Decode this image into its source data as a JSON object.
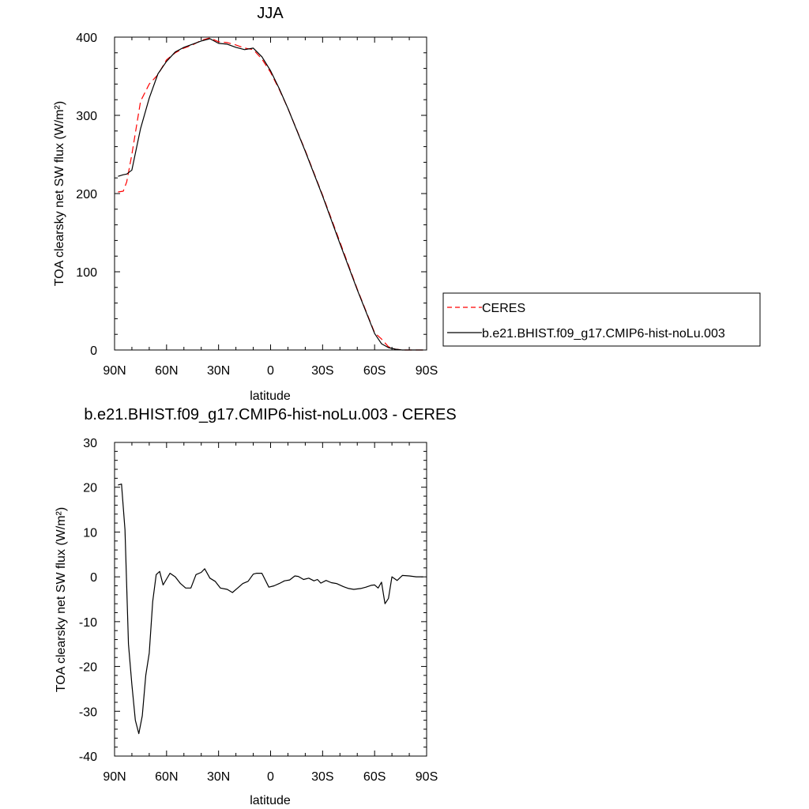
{
  "chart_data": [
    {
      "type": "line",
      "title": "JJA",
      "xlabel": "latitude",
      "ylabel": "TOA clearsky net SW flux (W/m²)",
      "x_tick_labels": [
        "90N",
        "60N",
        "30N",
        "0",
        "30S",
        "60S",
        "90S"
      ],
      "y_tick_labels": [
        "0",
        "100",
        "200",
        "300",
        "400"
      ],
      "xlim": [
        90,
        -90
      ],
      "ylim": [
        0,
        400
      ],
      "legend": {
        "placement": "right",
        "entries": [
          "CERES",
          "b.e21.BHIST.f09_g17.CMIP6-hist-noLu.003"
        ]
      },
      "series": [
        {
          "name": "CERES",
          "color": "#ff0000",
          "style": "dashed",
          "x": [
            88,
            85,
            83,
            80,
            75,
            70,
            65,
            60,
            55,
            50,
            45,
            40,
            35,
            30,
            25,
            20,
            15,
            10,
            5,
            0,
            -5,
            -10,
            -20,
            -30,
            -40,
            -50,
            -60,
            -64,
            -68,
            -72,
            -76,
            -80,
            -85,
            -88
          ],
          "y": [
            202,
            203,
            215,
            250,
            318,
            340,
            352,
            371,
            380,
            386,
            390,
            396,
            399,
            394,
            393,
            390,
            386,
            384,
            372,
            355,
            333,
            309,
            255,
            198,
            138,
            78,
            22,
            14,
            4,
            1,
            0,
            0,
            0,
            0
          ]
        },
        {
          "name": "b.e21.BHIST.f09_g17.CMIP6-hist-noLu.003",
          "color": "#000000",
          "style": "solid",
          "x": [
            88,
            85,
            83,
            80,
            75,
            70,
            65,
            60,
            55,
            50,
            45,
            40,
            35,
            30,
            25,
            20,
            15,
            10,
            5,
            0,
            -5,
            -10,
            -20,
            -30,
            -40,
            -50,
            -60,
            -64,
            -68,
            -72,
            -76,
            -80,
            -85,
            -88
          ],
          "y": [
            222,
            224,
            225,
            230,
            283,
            322,
            353,
            369,
            381,
            387,
            391,
            395,
            398,
            392,
            391,
            387,
            384,
            386,
            375,
            357,
            334,
            309,
            254,
            197,
            136,
            77,
            21,
            8,
            3,
            1,
            0,
            0,
            0,
            0
          ]
        }
      ]
    },
    {
      "type": "line",
      "title": "b.e21.BHIST.f09_g17.CMIP6-hist-noLu.003 - CERES",
      "xlabel": "latitude",
      "ylabel": "TOA clearsky net SW flux (W/m²)",
      "x_tick_labels": [
        "90N",
        "60N",
        "30N",
        "0",
        "30S",
        "60S",
        "90S"
      ],
      "y_tick_labels": [
        "-40",
        "-30",
        "-20",
        "-10",
        "0",
        "10",
        "20",
        "30"
      ],
      "xlim": [
        90,
        -90
      ],
      "ylim": [
        -40,
        30
      ],
      "series": [
        {
          "color": "#000000",
          "style": "solid",
          "x": [
            88,
            86,
            84,
            82,
            80,
            78,
            76,
            74,
            72,
            70,
            68,
            66,
            64,
            62,
            60,
            58,
            55,
            52,
            49,
            46,
            43,
            40,
            38,
            35,
            32,
            29,
            25,
            22,
            19,
            16,
            13,
            10,
            8,
            5,
            1,
            -2,
            -5,
            -8,
            -11,
            -14,
            -16,
            -19,
            -22,
            -25,
            -27,
            -29,
            -32,
            -35,
            -38,
            -42,
            -45,
            -48,
            -52,
            -55,
            -58,
            -60,
            -62,
            -64,
            -66,
            -68,
            -70,
            -73,
            -76,
            -80,
            -84,
            -88
          ],
          "y": [
            20.5,
            20.7,
            10.5,
            -15,
            -24,
            -32,
            -35,
            -31,
            -22,
            -17,
            -5.5,
            0.5,
            1.2,
            -1.8,
            -0.5,
            0.8,
            0,
            -1.5,
            -2.5,
            -2.5,
            0.5,
            1,
            1.8,
            -0.3,
            -1,
            -2.5,
            -2.8,
            -3.5,
            -2.5,
            -1.5,
            -1,
            0.6,
            0.8,
            0.8,
            -2.3,
            -2,
            -1.5,
            -0.9,
            -0.7,
            0.2,
            0.1,
            -0.6,
            -0.3,
            -0.9,
            -0.6,
            -1.4,
            -0.8,
            -1.3,
            -1.5,
            -2.2,
            -2.6,
            -2.8,
            -2.6,
            -2.3,
            -1.9,
            -1.8,
            -2.5,
            -1.2,
            -6,
            -4.8,
            0,
            -0.8,
            0.3,
            0.2,
            0,
            0
          ]
        }
      ]
    }
  ]
}
